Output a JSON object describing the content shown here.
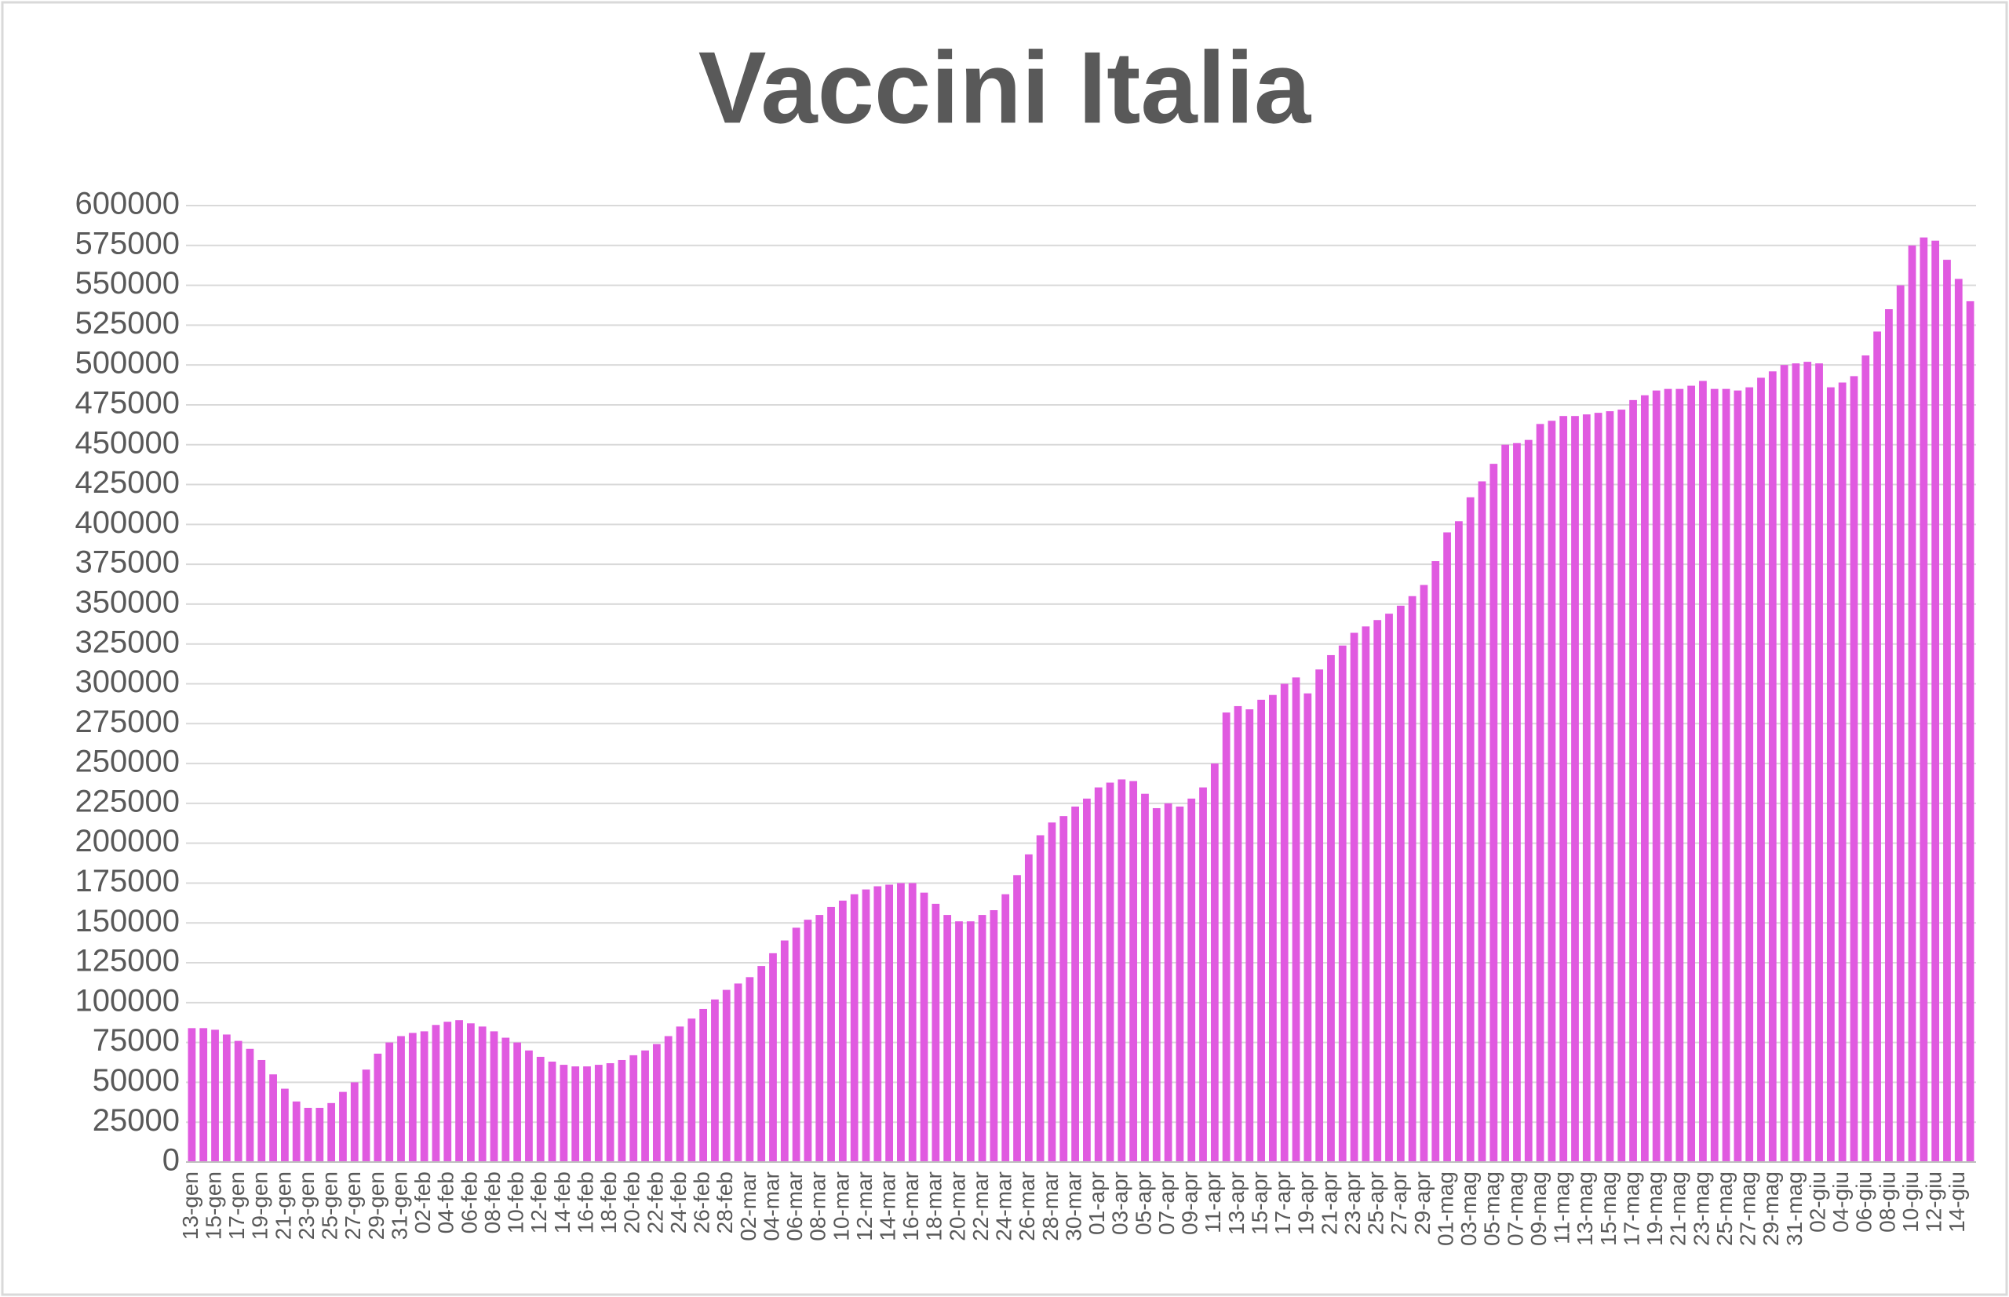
{
  "chart_data": {
    "type": "bar",
    "title": "Vaccini Italia",
    "color": "#e05ae0",
    "grid": true,
    "ylim": [
      0,
      600000
    ],
    "yticks": [
      0,
      25000,
      50000,
      75000,
      100000,
      125000,
      150000,
      175000,
      200000,
      225000,
      250000,
      275000,
      300000,
      325000,
      350000,
      375000,
      400000,
      425000,
      450000,
      475000,
      500000,
      525000,
      550000,
      575000,
      600000
    ],
    "categories": [
      "13-gen",
      null,
      "15-gen",
      null,
      "17-gen",
      null,
      "19-gen",
      null,
      "21-gen",
      null,
      "23-gen",
      null,
      "25-gen",
      null,
      "27-gen",
      null,
      "29-gen",
      null,
      "31-gen",
      null,
      "02-feb",
      null,
      "04-feb",
      null,
      "06-feb",
      null,
      "08-feb",
      null,
      "10-feb",
      null,
      "12-feb",
      null,
      "14-feb",
      null,
      "16-feb",
      null,
      "18-feb",
      null,
      "20-feb",
      null,
      "22-feb",
      null,
      "24-feb",
      null,
      "26-feb",
      null,
      "28-feb",
      null,
      "02-mar",
      null,
      "04-mar",
      null,
      "06-mar",
      null,
      "08-mar",
      null,
      "10-mar",
      null,
      "12-mar",
      null,
      "14-mar",
      null,
      "16-mar",
      null,
      "18-mar",
      null,
      "20-mar",
      null,
      "22-mar",
      null,
      "24-mar",
      null,
      "26-mar",
      null,
      "28-mar",
      null,
      "30-mar",
      null,
      "01-apr",
      null,
      "03-apr",
      null,
      "05-apr",
      null,
      "07-apr",
      null,
      "09-apr",
      null,
      "11-apr",
      null,
      "13-apr",
      null,
      "15-apr",
      null,
      "17-apr",
      null,
      "19-apr",
      null,
      "21-apr",
      null,
      "23-apr",
      null,
      "25-apr",
      null,
      "27-apr",
      null,
      "29-apr",
      null,
      "01-mag",
      null,
      "03-mag",
      null,
      "05-mag",
      null,
      "07-mag",
      null,
      "09-mag",
      null,
      "11-mag",
      null,
      "13-mag",
      null,
      "15-mag",
      null,
      "17-mag",
      null,
      "19-mag",
      null,
      "21-mag",
      null,
      "23-mag",
      null,
      "25-mag",
      null,
      "27-mag",
      null,
      "29-mag",
      null,
      "31-mag",
      null,
      "02-giu",
      null,
      "04-giu",
      null,
      "06-giu",
      null,
      "08-giu",
      null,
      "10-giu",
      null,
      "12-giu",
      null,
      "14-giu",
      null
    ],
    "values": [
      84000,
      84000,
      83000,
      80000,
      76000,
      71000,
      64000,
      55000,
      46000,
      38000,
      34000,
      34000,
      37000,
      44000,
      50000,
      58000,
      68000,
      75000,
      79000,
      81000,
      82000,
      86000,
      88000,
      89000,
      87000,
      85000,
      82000,
      78000,
      75000,
      70000,
      66000,
      63000,
      61000,
      60000,
      60000,
      61000,
      62000,
      64000,
      67000,
      70000,
      74000,
      79000,
      85000,
      90000,
      96000,
      102000,
      108000,
      112000,
      116000,
      123000,
      131000,
      139000,
      147000,
      152000,
      155000,
      160000,
      164000,
      168000,
      171000,
      173000,
      174000,
      175000,
      175000,
      169000,
      162000,
      155000,
      151000,
      151000,
      155000,
      158000,
      168000,
      180000,
      193000,
      205000,
      213000,
      217000,
      223000,
      228000,
      235000,
      238000,
      240000,
      239000,
      231000,
      222000,
      225000,
      223000,
      228000,
      235000,
      250000,
      282000,
      286000,
      284000,
      290000,
      293000,
      300000,
      304000,
      294000,
      309000,
      318000,
      324000,
      332000,
      336000,
      340000,
      344000,
      349000,
      355000,
      362000,
      377000,
      395000,
      402000,
      417000,
      427000,
      438000,
      450000,
      451000,
      453000,
      463000,
      465000,
      468000,
      468000,
      469000,
      470000,
      471000,
      472000,
      478000,
      481000,
      484000,
      485000,
      485000,
      487000,
      490000,
      485000,
      485000,
      484000,
      486000,
      492000,
      496000,
      500000,
      501000,
      502000,
      501000,
      486000,
      489000,
      493000,
      506000,
      521000,
      535000,
      550000,
      575000,
      580000,
      578000,
      566000,
      554000,
      540000
    ]
  }
}
